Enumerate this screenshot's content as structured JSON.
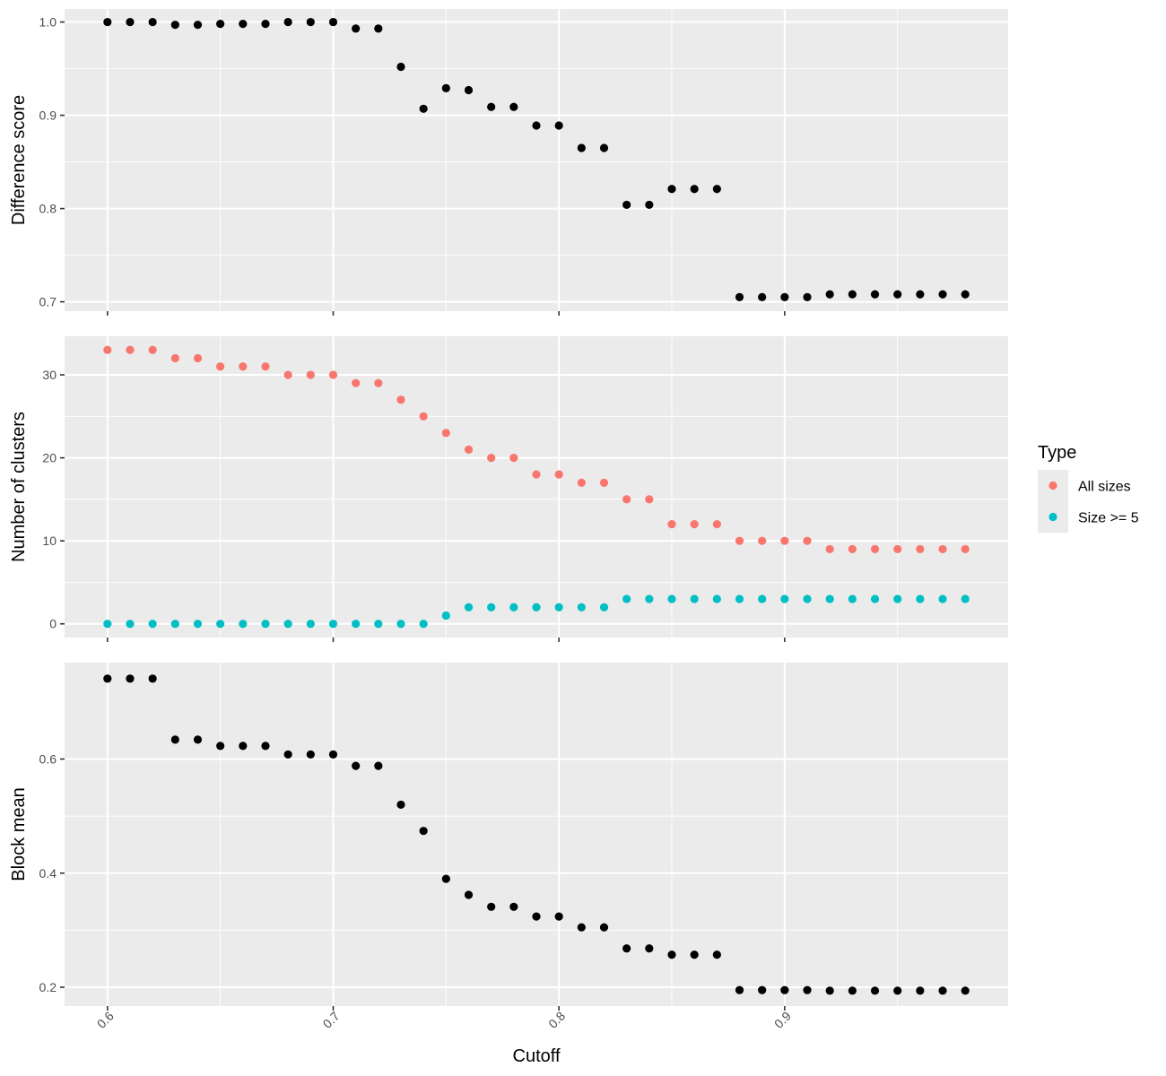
{
  "chart_data": {
    "type": "scatter",
    "x_axis": {
      "title": "Cutoff",
      "range": [
        0.581,
        0.999
      ],
      "ticks": [
        0.6,
        0.7,
        0.8,
        0.9
      ],
      "tick_labels": [
        "0.6",
        "0.7",
        "0.8",
        "0.9"
      ],
      "tick_label_rotation": "-45 degrees"
    },
    "x": [
      0.6,
      0.61,
      0.62,
      0.63,
      0.64,
      0.65,
      0.66,
      0.67,
      0.68,
      0.69,
      0.7,
      0.71,
      0.72,
      0.73,
      0.74,
      0.75,
      0.76,
      0.77,
      0.78,
      0.79,
      0.8,
      0.81,
      0.82,
      0.83,
      0.84,
      0.85,
      0.86,
      0.87,
      0.88,
      0.89,
      0.9,
      0.91,
      0.92,
      0.93,
      0.94,
      0.95,
      0.96,
      0.97,
      0.98
    ],
    "panels": [
      {
        "ylabel": "Difference score",
        "ylim": [
          0.69,
          1.014
        ],
        "yticks": [
          0.7,
          0.8,
          0.9,
          1.0
        ],
        "ytick_labels": [
          "0.7",
          "0.8",
          "0.9",
          "1.0"
        ],
        "series": [
          {
            "color": "#000000",
            "values": [
              1.0,
              1.0,
              1.0,
              0.997,
              0.997,
              0.998,
              0.998,
              0.998,
              1.0,
              1.0,
              1.0,
              0.993,
              0.993,
              0.952,
              0.907,
              0.929,
              0.927,
              0.909,
              0.909,
              0.889,
              0.889,
              0.865,
              0.865,
              0.804,
              0.804,
              0.821,
              0.821,
              0.821,
              0.705,
              0.705,
              0.705,
              0.705,
              0.708,
              0.708,
              0.708,
              0.708,
              0.708,
              0.708,
              0.708
            ]
          }
        ]
      },
      {
        "ylabel": "Number of clusters",
        "ylim": [
          -1.65,
          34.65
        ],
        "yticks": [
          0,
          10,
          20,
          30
        ],
        "ytick_labels": [
          "0",
          "10",
          "20",
          "30"
        ],
        "series": [
          {
            "name": "All sizes",
            "color": "#F8766D",
            "values": [
              33,
              33,
              33,
              32,
              32,
              31,
              31,
              31,
              30,
              30,
              30,
              29,
              29,
              27,
              25,
              23,
              21,
              20,
              20,
              18,
              18,
              17,
              17,
              15,
              15,
              12,
              12,
              12,
              10,
              10,
              10,
              10,
              9,
              9,
              9,
              9,
              9,
              9,
              9
            ]
          },
          {
            "name": "Size >= 5",
            "color": "#00BFC4",
            "values": [
              0,
              0,
              0,
              0,
              0,
              0,
              0,
              0,
              0,
              0,
              0,
              0,
              0,
              0,
              0,
              1,
              2,
              2,
              2,
              2,
              2,
              2,
              2,
              3,
              3,
              3,
              3,
              3,
              3,
              3,
              3,
              3,
              3,
              3,
              3,
              3,
              3,
              3,
              3
            ]
          }
        ]
      },
      {
        "ylabel": "Block mean",
        "ylim": [
          0.167,
          0.769
        ],
        "yticks": [
          0.2,
          0.4,
          0.6
        ],
        "ytick_labels": [
          "0.2",
          "0.4",
          "0.6"
        ],
        "series": [
          {
            "color": "#000000",
            "values": [
              0.741,
              0.741,
              0.741,
              0.634,
              0.634,
              0.623,
              0.623,
              0.623,
              0.608,
              0.608,
              0.608,
              0.588,
              0.588,
              0.52,
              0.474,
              0.39,
              0.362,
              0.341,
              0.341,
              0.324,
              0.324,
              0.305,
              0.305,
              0.268,
              0.268,
              0.257,
              0.257,
              0.257,
              0.195,
              0.195,
              0.195,
              0.195,
              0.194,
              0.194,
              0.194,
              0.194,
              0.194,
              0.194,
              0.194
            ]
          }
        ]
      }
    ],
    "legend": {
      "title": "Type",
      "position": "right",
      "entries": [
        {
          "label": "All sizes",
          "color": "#F8766D"
        },
        {
          "label": "Size >= 5",
          "color": "#00BFC4"
        }
      ]
    },
    "grid": true,
    "panel_background": "#EBEBEB",
    "grid_color": "#FFFFFF"
  }
}
